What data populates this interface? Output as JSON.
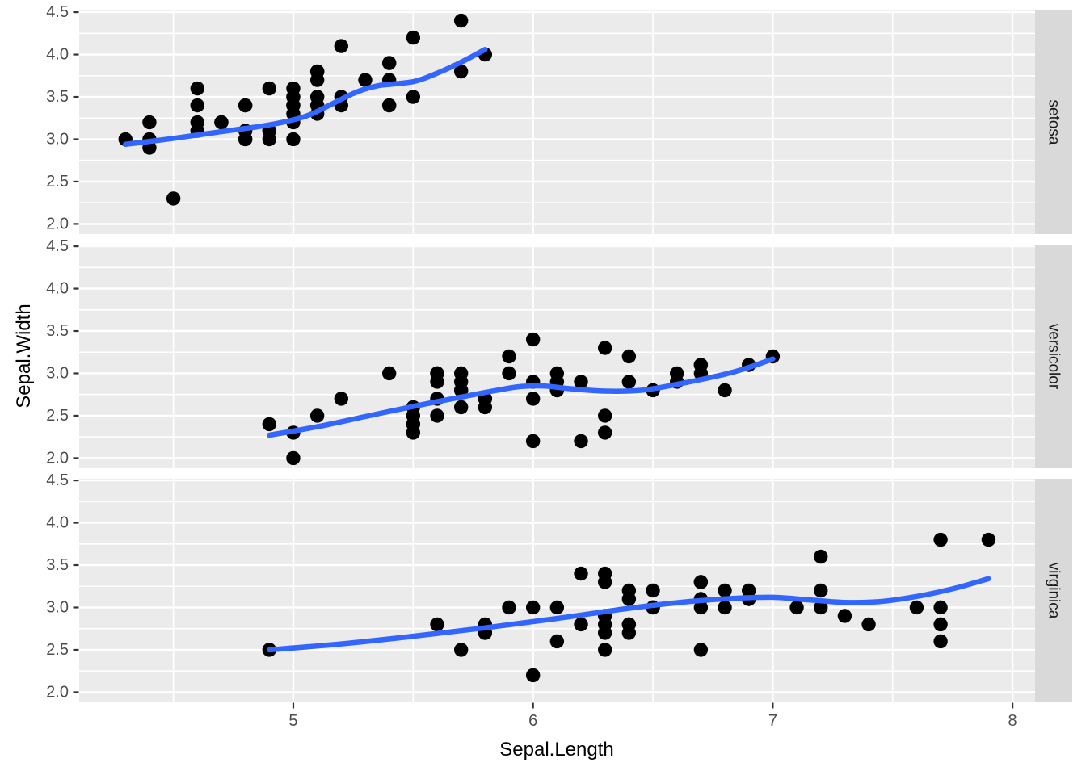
{
  "chart_data": {
    "type": "scatter",
    "title": "",
    "xlabel": "Sepal.Length",
    "ylabel": "Sepal.Width",
    "facet_variable": "Species",
    "legend": "none",
    "grid": true,
    "xlim": [
      4.107,
      8.094
    ],
    "ylim": [
      1.88,
      4.52
    ],
    "x_ticks": {
      "values": [
        5,
        6,
        7,
        8
      ],
      "labels": [
        "5",
        "6",
        "7",
        "8"
      ]
    },
    "y_ticks": {
      "values": [
        2.0,
        2.5,
        3.0,
        3.5,
        4.0,
        4.5
      ],
      "labels": [
        "2.0",
        "2.5",
        "3.0",
        "3.5",
        "4.0",
        "4.5"
      ]
    },
    "x_minor": [
      4.5,
      5.5,
      6.5,
      7.5
    ],
    "y_minor": [
      2.25,
      2.75,
      3.25,
      3.75,
      4.25
    ],
    "colors": {
      "point": "#000000",
      "smooth": "#3366FF",
      "panel_bg": "#EBEBEB",
      "strip_bg": "#D9D9D9",
      "grid_major": "#FFFFFF",
      "grid_minor": "#FFFFFF",
      "tick_mark": "#333333",
      "tick_label": "#4D4D4D",
      "strip_text": "#1A1A1A",
      "axis_title": "#000000",
      "background": "#FFFFFF"
    },
    "facets": [
      {
        "label": "setosa",
        "points": [
          [
            5.1,
            3.5
          ],
          [
            4.9,
            3.0
          ],
          [
            4.7,
            3.2
          ],
          [
            4.6,
            3.1
          ],
          [
            5.0,
            3.6
          ],
          [
            5.4,
            3.9
          ],
          [
            4.6,
            3.4
          ],
          [
            5.0,
            3.4
          ],
          [
            4.4,
            2.9
          ],
          [
            4.9,
            3.1
          ],
          [
            5.4,
            3.7
          ],
          [
            4.8,
            3.4
          ],
          [
            4.8,
            3.0
          ],
          [
            4.3,
            3.0
          ],
          [
            5.8,
            4.0
          ],
          [
            5.7,
            4.4
          ],
          [
            5.4,
            3.9
          ],
          [
            5.1,
            3.5
          ],
          [
            5.7,
            3.8
          ],
          [
            5.1,
            3.8
          ],
          [
            5.4,
            3.4
          ],
          [
            5.1,
            3.7
          ],
          [
            4.6,
            3.6
          ],
          [
            5.1,
            3.3
          ],
          [
            4.8,
            3.4
          ],
          [
            5.0,
            3.0
          ],
          [
            5.0,
            3.4
          ],
          [
            5.2,
            3.5
          ],
          [
            5.2,
            3.4
          ],
          [
            4.7,
            3.2
          ],
          [
            4.8,
            3.1
          ],
          [
            5.4,
            3.4
          ],
          [
            5.2,
            4.1
          ],
          [
            5.5,
            4.2
          ],
          [
            4.9,
            3.1
          ],
          [
            5.0,
            3.2
          ],
          [
            5.5,
            3.5
          ],
          [
            4.9,
            3.6
          ],
          [
            4.4,
            3.0
          ],
          [
            5.1,
            3.4
          ],
          [
            5.0,
            3.5
          ],
          [
            4.5,
            2.3
          ],
          [
            4.4,
            3.2
          ],
          [
            5.0,
            3.5
          ],
          [
            5.1,
            3.8
          ],
          [
            4.8,
            3.0
          ],
          [
            5.1,
            3.8
          ],
          [
            4.6,
            3.2
          ],
          [
            5.3,
            3.7
          ],
          [
            5.0,
            3.3
          ]
        ],
        "smooth": [
          [
            4.3,
            2.94
          ],
          [
            4.5,
            3.01
          ],
          [
            4.7,
            3.09
          ],
          [
            4.9,
            3.17
          ],
          [
            5.05,
            3.27
          ],
          [
            5.15,
            3.4
          ],
          [
            5.25,
            3.54
          ],
          [
            5.35,
            3.63
          ],
          [
            5.5,
            3.68
          ],
          [
            5.6,
            3.78
          ],
          [
            5.7,
            3.91
          ],
          [
            5.8,
            4.06
          ]
        ]
      },
      {
        "label": "versicolor",
        "points": [
          [
            7.0,
            3.2
          ],
          [
            6.4,
            3.2
          ],
          [
            6.9,
            3.1
          ],
          [
            5.5,
            2.3
          ],
          [
            6.5,
            2.8
          ],
          [
            5.7,
            2.8
          ],
          [
            6.3,
            3.3
          ],
          [
            4.9,
            2.4
          ],
          [
            6.6,
            2.9
          ],
          [
            5.2,
            2.7
          ],
          [
            5.0,
            2.0
          ],
          [
            5.9,
            3.0
          ],
          [
            6.0,
            2.2
          ],
          [
            6.1,
            2.9
          ],
          [
            5.6,
            2.9
          ],
          [
            6.7,
            3.1
          ],
          [
            5.6,
            3.0
          ],
          [
            5.8,
            2.7
          ],
          [
            6.2,
            2.2
          ],
          [
            5.6,
            2.5
          ],
          [
            5.9,
            3.2
          ],
          [
            6.1,
            2.8
          ],
          [
            6.3,
            2.5
          ],
          [
            6.1,
            2.8
          ],
          [
            6.4,
            2.9
          ],
          [
            6.6,
            3.0
          ],
          [
            6.8,
            2.8
          ],
          [
            6.7,
            3.0
          ],
          [
            6.0,
            2.9
          ],
          [
            5.7,
            2.6
          ],
          [
            5.5,
            2.4
          ],
          [
            5.5,
            2.4
          ],
          [
            5.8,
            2.7
          ],
          [
            6.0,
            2.7
          ],
          [
            5.4,
            3.0
          ],
          [
            6.0,
            3.4
          ],
          [
            6.7,
            3.1
          ],
          [
            6.3,
            2.3
          ],
          [
            5.6,
            3.0
          ],
          [
            5.5,
            2.5
          ],
          [
            5.5,
            2.6
          ],
          [
            6.1,
            3.0
          ],
          [
            5.8,
            2.6
          ],
          [
            5.0,
            2.3
          ],
          [
            5.6,
            2.7
          ],
          [
            5.7,
            3.0
          ],
          [
            5.7,
            2.9
          ],
          [
            6.2,
            2.9
          ],
          [
            5.1,
            2.5
          ],
          [
            5.7,
            2.8
          ]
        ],
        "smooth": [
          [
            4.9,
            2.27
          ],
          [
            5.1,
            2.37
          ],
          [
            5.3,
            2.49
          ],
          [
            5.5,
            2.61
          ],
          [
            5.7,
            2.72
          ],
          [
            5.85,
            2.8
          ],
          [
            5.95,
            2.845
          ],
          [
            6.05,
            2.85
          ],
          [
            6.15,
            2.82
          ],
          [
            6.3,
            2.79
          ],
          [
            6.45,
            2.8
          ],
          [
            6.6,
            2.87
          ],
          [
            6.8,
            2.99
          ],
          [
            6.9,
            3.07
          ],
          [
            7.0,
            3.17
          ]
        ]
      },
      {
        "label": "virginica",
        "points": [
          [
            6.3,
            3.3
          ],
          [
            5.8,
            2.7
          ],
          [
            7.1,
            3.0
          ],
          [
            6.3,
            2.9
          ],
          [
            6.5,
            3.0
          ],
          [
            7.6,
            3.0
          ],
          [
            4.9,
            2.5
          ],
          [
            7.3,
            2.9
          ],
          [
            6.7,
            2.5
          ],
          [
            7.2,
            3.6
          ],
          [
            6.5,
            3.2
          ],
          [
            6.4,
            2.7
          ],
          [
            6.8,
            3.0
          ],
          [
            5.7,
            2.5
          ],
          [
            5.8,
            2.8
          ],
          [
            6.4,
            3.2
          ],
          [
            6.5,
            3.0
          ],
          [
            7.7,
            3.8
          ],
          [
            7.7,
            2.6
          ],
          [
            6.0,
            2.2
          ],
          [
            6.9,
            3.2
          ],
          [
            5.6,
            2.8
          ],
          [
            7.7,
            2.8
          ],
          [
            6.3,
            2.7
          ],
          [
            6.7,
            3.3
          ],
          [
            7.2,
            3.2
          ],
          [
            6.2,
            2.8
          ],
          [
            6.1,
            3.0
          ],
          [
            6.4,
            2.8
          ],
          [
            7.2,
            3.0
          ],
          [
            7.4,
            2.8
          ],
          [
            7.9,
            3.8
          ],
          [
            6.4,
            2.8
          ],
          [
            6.3,
            2.8
          ],
          [
            6.1,
            2.6
          ],
          [
            7.7,
            3.0
          ],
          [
            6.3,
            3.4
          ],
          [
            6.4,
            3.1
          ],
          [
            6.0,
            3.0
          ],
          [
            6.9,
            3.1
          ],
          [
            6.7,
            3.1
          ],
          [
            6.9,
            3.1
          ],
          [
            5.8,
            2.7
          ],
          [
            6.8,
            3.2
          ],
          [
            6.7,
            3.3
          ],
          [
            6.7,
            3.0
          ],
          [
            6.3,
            2.5
          ],
          [
            6.5,
            3.0
          ],
          [
            6.2,
            3.4
          ],
          [
            5.9,
            3.0
          ]
        ],
        "smooth": [
          [
            4.9,
            2.5
          ],
          [
            5.2,
            2.57
          ],
          [
            5.5,
            2.66
          ],
          [
            5.8,
            2.76
          ],
          [
            6.1,
            2.87
          ],
          [
            6.4,
            2.99
          ],
          [
            6.65,
            3.07
          ],
          [
            6.85,
            3.11
          ],
          [
            7.0,
            3.12
          ],
          [
            7.15,
            3.09
          ],
          [
            7.3,
            3.06
          ],
          [
            7.45,
            3.07
          ],
          [
            7.6,
            3.13
          ],
          [
            7.75,
            3.22
          ],
          [
            7.9,
            3.34
          ]
        ]
      }
    ]
  }
}
